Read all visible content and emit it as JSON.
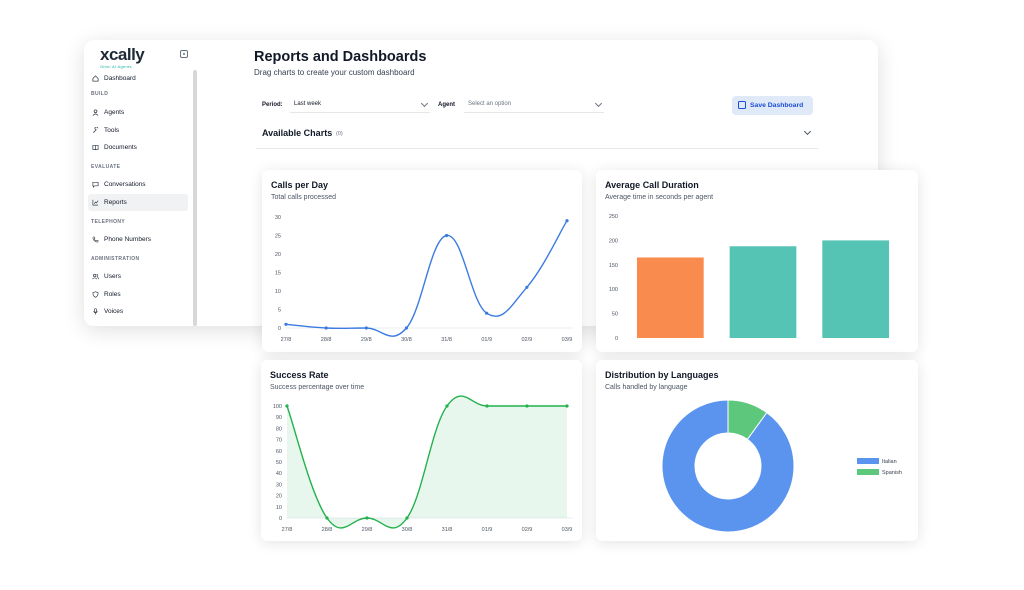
{
  "sidebar": {
    "logo": "xcally",
    "logo_tagline": "Omni AI Agents",
    "items": [
      {
        "label": "Dashboard",
        "icon": "home-icon"
      },
      {
        "label": "Agents",
        "icon": "user-icon"
      },
      {
        "label": "Tools",
        "icon": "wrench-icon"
      },
      {
        "label": "Documents",
        "icon": "book-icon"
      },
      {
        "label": "Conversations",
        "icon": "chat-icon"
      },
      {
        "label": "Reports",
        "icon": "chart-icon",
        "active": true
      },
      {
        "label": "Phone Numbers",
        "icon": "phone-icon"
      },
      {
        "label": "Users",
        "icon": "users-icon"
      },
      {
        "label": "Roles",
        "icon": "shield-icon"
      },
      {
        "label": "Voices",
        "icon": "mic-icon"
      }
    ],
    "sections": [
      "BUILD",
      "EVALUATE",
      "TELEPHONY",
      "ADMINISTRATION"
    ]
  },
  "header": {
    "title": "Reports and Dashboards",
    "subtitle": "Drag charts to create your custom dashboard"
  },
  "filters": {
    "period_label": "Period:",
    "period_value": "Last week",
    "agent_label": "Agent",
    "agent_placeholder": "Select an option",
    "save_label": "Save Dashboard"
  },
  "available": {
    "title": "Available Charts",
    "count": "(0)"
  },
  "colors": {
    "blue": "#3b7be0",
    "green": "#22b14c",
    "orange": "#fa8b4e",
    "teal": "#56c4b4",
    "pie_blue": "#5b94ef",
    "pie_green": "#5dc77c",
    "accent": "#1d4ed8"
  },
  "cards": {
    "calls": {
      "title": "Calls per Day",
      "subtitle": "Total calls processed"
    },
    "duration": {
      "title": "Average Call Duration",
      "subtitle": "Average time in seconds per agent"
    },
    "success": {
      "title": "Success Rate",
      "subtitle": "Success percentage over time"
    },
    "languages": {
      "title": "Distribution by Languages",
      "subtitle": "Calls handled by language"
    }
  },
  "chart_data": [
    {
      "id": "calls",
      "type": "line",
      "title": "Calls per Day",
      "subtitle": "Total calls processed",
      "categories": [
        "27/8",
        "28/8",
        "29/8",
        "30/8",
        "31/8",
        "01/9",
        "02/9",
        "03/9"
      ],
      "series": [
        {
          "values": [
            1,
            0,
            0,
            0,
            25,
            4,
            11,
            29
          ]
        }
      ],
      "ylim": [
        0,
        30
      ],
      "yticks": [
        0,
        5,
        10,
        15,
        20,
        25,
        30
      ]
    },
    {
      "id": "duration",
      "type": "bar",
      "title": "Average Call Duration",
      "subtitle": "Average time in seconds per agent",
      "categories": [
        "",
        "",
        ""
      ],
      "values": [
        165,
        188,
        200
      ],
      "bar_colors": [
        "#fa8b4e",
        "#56c4b4",
        "#56c4b4"
      ],
      "ylim": [
        0,
        250
      ],
      "yticks": [
        0,
        50,
        100,
        150,
        200,
        250
      ]
    },
    {
      "id": "success",
      "type": "area",
      "title": "Success Rate",
      "subtitle": "Success percentage over time",
      "categories": [
        "27/8",
        "28/8",
        "29/8",
        "30/8",
        "31/8",
        "01/9",
        "02/9",
        "03/9"
      ],
      "series": [
        {
          "values": [
            100,
            0,
            0,
            0,
            100,
            100,
            100,
            100
          ]
        }
      ],
      "ylim": [
        0,
        100
      ],
      "yticks": [
        0,
        10,
        20,
        30,
        40,
        50,
        60,
        70,
        80,
        90,
        100
      ]
    },
    {
      "id": "languages",
      "type": "pie",
      "title": "Distribution by Languages",
      "subtitle": "Calls handled by language",
      "labels": [
        "Italian",
        "Spanish"
      ],
      "values": [
        90,
        10
      ],
      "colors": [
        "#5b94ef",
        "#5dc77c"
      ]
    }
  ]
}
